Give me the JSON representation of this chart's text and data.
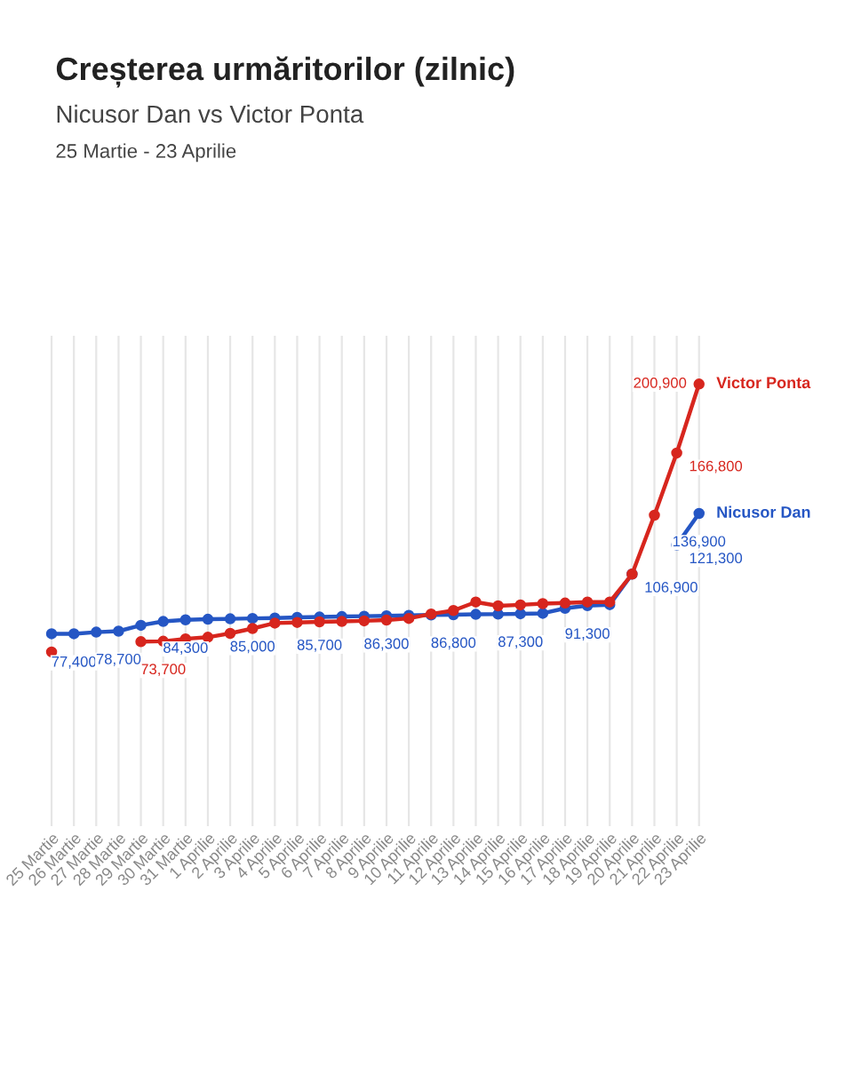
{
  "chart_data": {
    "type": "line",
    "title": "Creșterea urmăritorilor (zilnic)",
    "subtitle": "Nicusor Dan vs Victor Ponta",
    "annotations": [
      "25 Martie - 23 Aprilie"
    ],
    "categories": [
      "25 Martie",
      "26 Martie",
      "27 Martie",
      "28 Martie",
      "29 Martie",
      "30 Martie",
      "31 Martie",
      "1 Aprilie",
      "2 Aprilie",
      "3 Aprilie",
      "4 Aprilie",
      "5 Aprilie",
      "6 Aprilie",
      "7 Aprilie",
      "8 Aprilie",
      "9 Aprilie",
      "10 Aprilie",
      "11 Aprilie",
      "12 Aprilie",
      "13 Aprilie",
      "14 Aprilie",
      "15 Aprilie",
      "16 Aprilie",
      "17 Aprilie",
      "18 Aprilie",
      "19 Aprilie",
      "20 Aprilie",
      "21 Aprilie",
      "22 Aprilie",
      "23 Aprilie"
    ],
    "series": [
      {
        "name": "Victor Ponta",
        "color": "#d7261e",
        "values": [
          68400,
          null,
          null,
          null,
          73500,
          73700,
          74900,
          75700,
          77600,
          80000,
          82700,
          83000,
          83300,
          83500,
          83800,
          84200,
          85000,
          87200,
          88900,
          93100,
          91200,
          91700,
          92300,
          92600,
          93100,
          93100,
          106900,
          136000,
          166800,
          200900
        ],
        "value_labels": [
          null,
          null,
          null,
          null,
          null,
          "73,700",
          null,
          null,
          null,
          null,
          null,
          null,
          null,
          null,
          null,
          null,
          null,
          null,
          null,
          null,
          null,
          null,
          null,
          null,
          null,
          null,
          null,
          null,
          "166,800",
          "200,900"
        ]
      },
      {
        "name": "Nicusor Dan",
        "color": "#2556c4",
        "values": [
          77400,
          77400,
          78200,
          78700,
          81600,
          83500,
          84300,
          84600,
          84800,
          85000,
          85200,
          85500,
          85700,
          85900,
          86100,
          86300,
          86500,
          86700,
          86800,
          87000,
          87100,
          87300,
          87500,
          90000,
          91300,
          91800,
          106900,
          null,
          121300,
          136900
        ],
        "value_labels": [
          null,
          "77,400",
          null,
          "78,700",
          null,
          null,
          "84,300",
          null,
          null,
          "85,000",
          null,
          null,
          "85,700",
          null,
          null,
          "86,300",
          null,
          null,
          "86,800",
          null,
          null,
          "87,300",
          null,
          null,
          "91,300",
          null,
          "106,900",
          null,
          "121,300",
          "136,900"
        ]
      }
    ],
    "marker": "circle",
    "line_style": "solid",
    "grid": "x",
    "legend": false
  }
}
